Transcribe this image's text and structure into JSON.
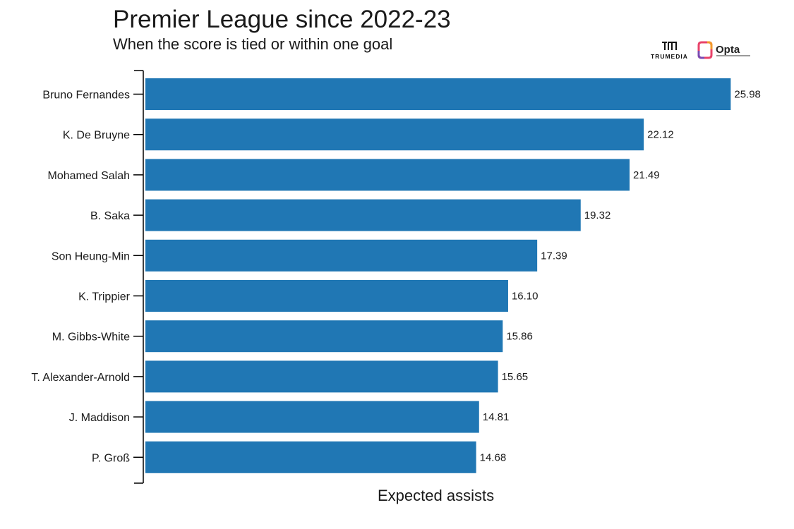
{
  "header": {
    "title": "Premier League since 2022-23",
    "subtitle": "When the score is tied or within one goal"
  },
  "logos": {
    "trumedia_text": "TRUMEDIA",
    "opta_text": "Opta"
  },
  "colors": {
    "bar": "#2077b4",
    "axis": "#000000",
    "text": "#1a1a1a"
  },
  "chart_data": {
    "type": "bar",
    "orientation": "horizontal",
    "title": "Premier League since 2022-23",
    "subtitle": "When the score is tied or within one goal",
    "xlabel": "Expected assists",
    "ylabel": "",
    "xlim": [
      0,
      26
    ],
    "categories": [
      "Bruno Fernandes",
      "K. De Bruyne",
      "Mohamed Salah",
      "B. Saka",
      "Son Heung-Min",
      "K. Trippier",
      "M. Gibbs-White",
      "T. Alexander-Arnold",
      "J. Maddison",
      "P. Groß"
    ],
    "values": [
      25.98,
      22.12,
      21.49,
      19.32,
      17.39,
      16.1,
      15.86,
      15.65,
      14.81,
      14.68
    ],
    "value_labels": [
      "25.98",
      "22.12",
      "21.49",
      "19.32",
      "17.39",
      "16.10",
      "15.86",
      "15.65",
      "14.81",
      "14.68"
    ],
    "grid": false,
    "legend": "none"
  }
}
